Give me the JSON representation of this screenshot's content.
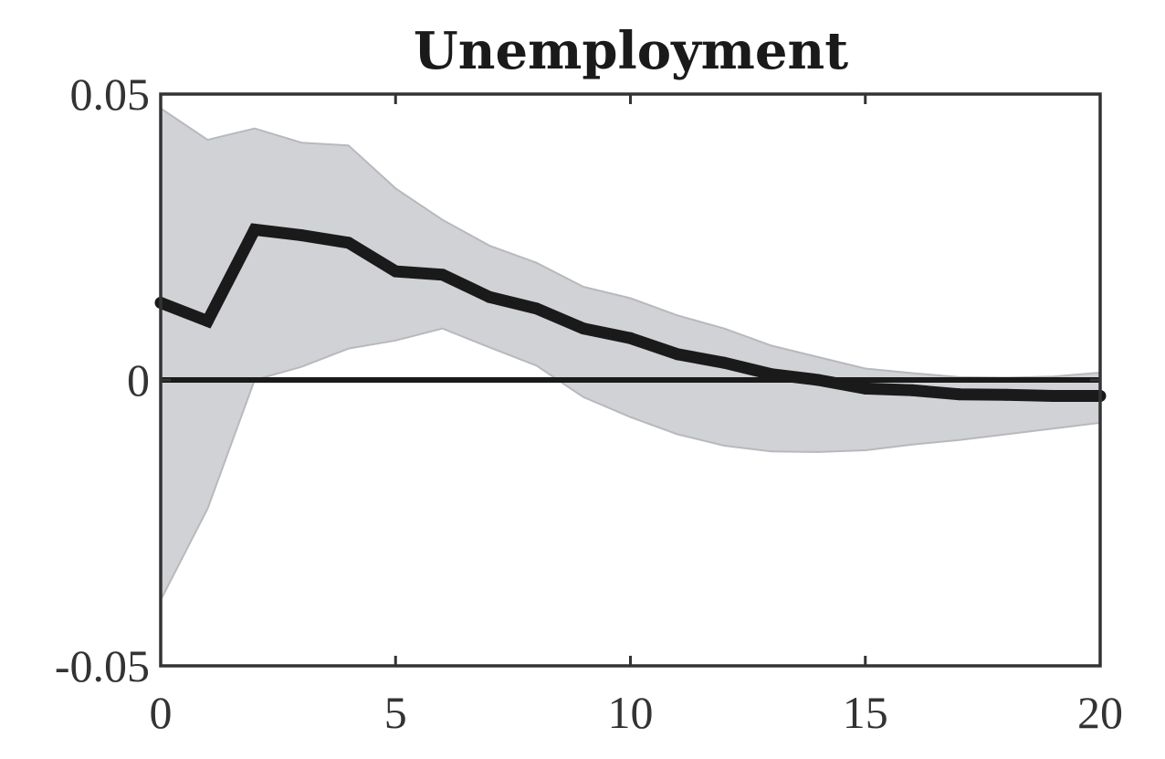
{
  "chart_data": {
    "type": "line",
    "title": "Unemployment",
    "xlabel": "",
    "ylabel": "",
    "xlim": [
      0,
      20
    ],
    "ylim": [
      -0.05,
      0.05
    ],
    "x_ticks": [
      0,
      5,
      10,
      15,
      20
    ],
    "x_tick_labels": [
      "0",
      "5",
      "10",
      "15",
      "20"
    ],
    "y_ticks": [
      -0.05,
      0,
      0.05
    ],
    "y_tick_labels": [
      "-0.05",
      "0",
      "0.05"
    ],
    "grid": false,
    "legend": "none",
    "zero_line": 0,
    "x": [
      0,
      1,
      2,
      3,
      4,
      5,
      6,
      7,
      8,
      9,
      10,
      11,
      12,
      13,
      14,
      15,
      16,
      17,
      18,
      19,
      20
    ],
    "series": [
      {
        "values": [
          0.0135,
          0.0103,
          0.0263,
          0.0253,
          0.024,
          0.019,
          0.0184,
          0.0145,
          0.0125,
          0.009,
          0.0073,
          0.0045,
          0.003,
          0.001,
          0.0,
          -0.0015,
          -0.0018,
          -0.0025,
          -0.0026,
          -0.0028,
          -0.0028
        ],
        "lower": [
          -0.0385,
          -0.0225,
          0.0,
          0.0023,
          0.0055,
          0.0069,
          0.009,
          0.0057,
          0.0025,
          -0.003,
          -0.0065,
          -0.0095,
          -0.0115,
          -0.0125,
          -0.0126,
          -0.0123,
          -0.0113,
          -0.0105,
          -0.0095,
          -0.0085,
          -0.0075
        ],
        "upper": [
          0.0475,
          0.042,
          0.044,
          0.0415,
          0.041,
          0.0335,
          0.028,
          0.0235,
          0.0205,
          0.0163,
          0.0143,
          0.0113,
          0.009,
          0.006,
          0.004,
          0.002,
          0.0012,
          0.0005,
          0.0004,
          0.0006,
          0.0013
        ]
      }
    ],
    "colors": {
      "line": "#1a1a1a",
      "band_fill": "#d1d2d5",
      "band_edge": "#b8b9bd",
      "axis": "#333333"
    }
  }
}
